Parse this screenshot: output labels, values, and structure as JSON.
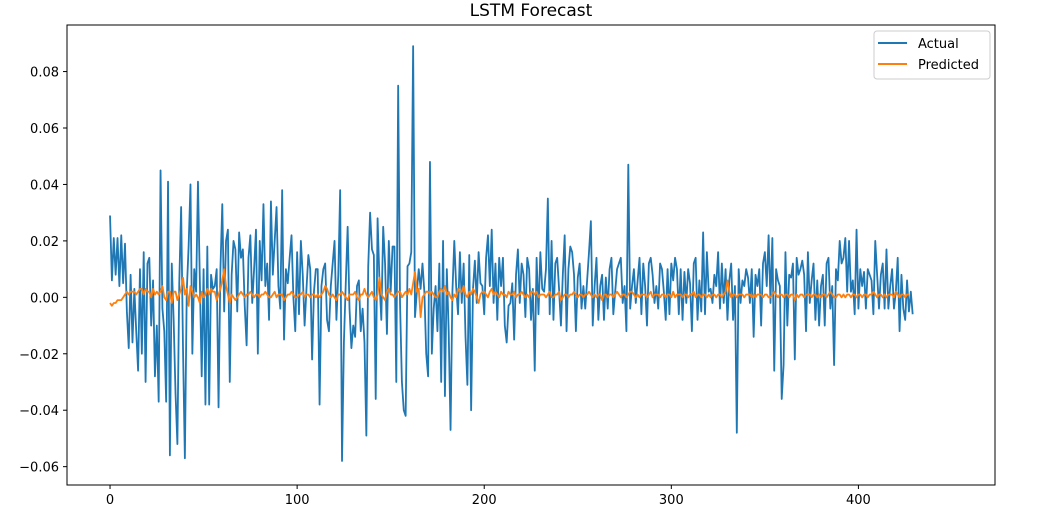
{
  "chart_data": {
    "type": "line",
    "title": "LSTM Forecast",
    "xlabel": "",
    "ylabel": "",
    "xlim": [
      -23,
      473
    ],
    "ylim": [
      -0.0665,
      0.0965
    ],
    "x_ticks": [
      0,
      100,
      200,
      300,
      400
    ],
    "y_ticks": [
      -0.06,
      -0.04,
      -0.02,
      0.0,
      0.02,
      0.04,
      0.06,
      0.08
    ],
    "y_tick_labels": [
      "−0.06",
      "−0.04",
      "−0.02",
      "0.00",
      "0.02",
      "0.04",
      "0.06",
      "0.08"
    ],
    "grid": false,
    "legend_position": "top-right",
    "series": [
      {
        "name": "Actual",
        "color": "#1f77b4",
        "values": [
          0.029,
          0.006,
          0.021,
          0.008,
          0.021,
          0.004,
          0.022,
          0.005,
          0.019,
          -0.005,
          -0.018,
          0.008,
          -0.016,
          0.003,
          -0.012,
          -0.026,
          0.01,
          -0.02,
          0.016,
          -0.03,
          0.012,
          0.014,
          -0.01,
          0.006,
          -0.028,
          -0.01,
          -0.037,
          0.045,
          -0.004,
          -0.012,
          -0.037,
          0.041,
          -0.056,
          0.012,
          -0.008,
          -0.034,
          -0.052,
          0.005,
          0.032,
          -0.018,
          -0.057,
          0.002,
          0.018,
          0.04,
          -0.02,
          0.01,
          0.002,
          0.041,
          0.006,
          -0.028,
          0.01,
          -0.038,
          0.018,
          -0.038,
          0.008,
          0.003,
          0.004,
          0.01,
          -0.039,
          0.01,
          0.033,
          -0.005,
          0.02,
          0.024,
          -0.03,
          0.008,
          0.02,
          0.017,
          -0.005,
          0.023,
          0.014,
          0.017,
          -0.003,
          -0.017,
          0.014,
          0.022,
          -0.002,
          0.01,
          0.024,
          -0.02,
          0.02,
          0.006,
          0.033,
          0.004,
          0.012,
          -0.008,
          0.034,
          0.008,
          0.02,
          0.032,
          0.004,
          -0.004,
          0.038,
          -0.015,
          0.01,
          0.005,
          0.014,
          0.022,
          0.0,
          -0.012,
          0.016,
          -0.006,
          0.02,
          0.008,
          -0.01,
          0.003,
          0.015,
          0.01,
          -0.022,
          0.002,
          0.01,
          0.01,
          -0.038,
          0.004,
          0.01,
          0.012,
          -0.008,
          -0.012,
          0.004,
          0.012,
          0.02,
          -0.008,
          0.008,
          0.038,
          -0.058,
          -0.016,
          0.005,
          0.025,
          -0.004,
          -0.018,
          -0.01,
          -0.014,
          0.004,
          0.006,
          -0.012,
          -0.004,
          -0.016,
          -0.049,
          0.011,
          0.03,
          0.017,
          0.015,
          -0.036,
          0.028,
          0.006,
          -0.008,
          0.025,
          0.012,
          -0.013,
          0.02,
          0.002,
          0.018,
          0.018,
          -0.03,
          0.075,
          -0.002,
          -0.03,
          -0.04,
          -0.042,
          0.011,
          0.012,
          0.016,
          0.089,
          -0.007,
          0.002,
          0.01,
          0.003,
          0.012,
          0.002,
          -0.02,
          -0.028,
          0.048,
          -0.02,
          -0.004,
          0.004,
          -0.012,
          0.012,
          -0.03,
          0.02,
          -0.035,
          0.01,
          -0.012,
          -0.047,
          0.002,
          0.02,
          0.004,
          -0.006,
          0.016,
          -0.002,
          0.012,
          -0.014,
          -0.031,
          0.015,
          -0.04,
          0.003,
          0.013,
          -0.002,
          0.016,
          0.005,
          0.004,
          -0.006,
          0.014,
          0.022,
          0.004,
          0.024,
          -0.002,
          0.012,
          -0.008,
          0.014,
          0.004,
          0.014,
          -0.01,
          -0.016,
          -0.003,
          -0.002,
          0.005,
          -0.015,
          0.008,
          0.017,
          -0.002,
          0.012,
          0.008,
          -0.007,
          0.014,
          0.01,
          -0.008,
          0.003,
          -0.026,
          0.014,
          -0.006,
          0.016,
          0.003,
          0.002,
          0.01,
          0.035,
          -0.006,
          0.02,
          -0.008,
          0.012,
          0.014,
          0.003,
          -0.01,
          0.008,
          0.022,
          -0.012,
          0.01,
          0.018,
          0.016,
          0.008,
          -0.012,
          0.007,
          0.012,
          -0.004,
          0.004,
          -0.004,
          0.006,
          0.016,
          0.027,
          -0.01,
          0.004,
          0.014,
          -0.008,
          0.004,
          0.008,
          -0.008,
          0.007,
          -0.004,
          0.01,
          0.014,
          -0.006,
          0.002,
          0.01,
          0.012,
          0.014,
          -0.002,
          0.004,
          -0.012,
          0.047,
          -0.004,
          0.004,
          0.01,
          -0.002,
          0.006,
          0.014,
          -0.006,
          0.012,
          0.004,
          -0.01,
          0.012,
          0.014,
          0.008,
          -0.002,
          0.004,
          -0.004,
          0.012,
          0.01,
          0.002,
          -0.008,
          0.01,
          -0.006,
          0.012,
          0.006,
          0.014,
          0.01,
          -0.006,
          0.01,
          -0.008,
          0.009,
          -0.002,
          0.01,
          0.005,
          -0.012,
          0.012,
          0.014,
          -0.008,
          0.006,
          -0.005,
          0.023,
          -0.006,
          0.016,
          0.002,
          0.003,
          -0.002,
          0.008,
          0.004,
          0.016,
          -0.004,
          0.012,
          -0.002,
          0.01,
          -0.008,
          0.006,
          0.012,
          -0.008,
          0.004,
          -0.048,
          0.01,
          -0.002,
          0.006,
          0.004,
          0.01,
          0.007,
          -0.002,
          0.01,
          -0.014,
          0.008,
          0.004,
          0.01,
          -0.01,
          0.012,
          0.016,
          0.004,
          0.022,
          -0.002,
          0.021,
          -0.026,
          0.01,
          0.006,
          0.004,
          -0.036,
          -0.024,
          0.016,
          -0.01,
          0.008,
          0.007,
          0.012,
          -0.022,
          0.014,
          0.008,
          0.01,
          0.013,
          0.008,
          -0.012,
          0.016,
          -0.002,
          0.006,
          0.012,
          -0.008,
          0.006,
          -0.01,
          0.004,
          0.008,
          -0.01,
          0.012,
          0.014,
          -0.004,
          0.004,
          -0.024,
          0.01,
          0.006,
          0.02,
          0.012,
          0.014,
          0.021,
          0.002,
          0.02,
          0.002,
          0.006,
          -0.006,
          0.024,
          -0.004,
          0.01,
          0.004,
          0.009,
          -0.004,
          0.01,
          0.008,
          0.006,
          -0.006,
          0.02,
          0.008,
          -0.004,
          0.008,
          0.012,
          -0.004,
          0.017,
          -0.004,
          0.004,
          0.01,
          -0.004,
          0.002,
          0.014,
          -0.012,
          0.008,
          -0.004,
          -0.008,
          0.006,
          -0.005,
          0.002,
          -0.006
        ]
      },
      {
        "name": "Predicted",
        "color": "#ff7f0e",
        "values": [
          -0.002,
          -0.003,
          -0.002,
          -0.002,
          -0.001,
          -0.001,
          -0.001,
          0.0,
          0.001,
          0.002,
          0.001,
          0.002,
          0.002,
          0.002,
          0.001,
          0.002,
          0.003,
          0.003,
          0.001,
          0.003,
          0.002,
          0.002,
          0.0,
          0.003,
          0.001,
          0.002,
          0.001,
          0.002,
          0.004,
          0.0,
          -0.001,
          0.002,
          0.002,
          -0.002,
          0.002,
          0.002,
          -0.001,
          0.001,
          0.003,
          0.007,
          0.001,
          0.003,
          -0.003,
          0.004,
          0.002,
          0.0,
          0.001,
          0.0,
          -0.002,
          0.002,
          0.0,
          0.001,
          0.003,
          0.001,
          0.003,
          0.002,
          0.002,
          -0.001,
          0.001,
          0.003,
          0.006,
          0.01,
          0.004,
          0.001,
          -0.002,
          0.001,
          0.0,
          -0.001,
          0.0,
          0.001,
          0.002,
          0.001,
          0.0,
          0.001,
          0.001,
          0.002,
          0.001,
          0.0,
          0.001,
          0.001,
          0.0,
          0.001,
          0.001,
          0.002,
          0.001,
          0.0,
          0.0,
          0.001,
          0.002,
          0.0,
          0.001,
          0.001,
          0.001,
          -0.001,
          0.0,
          0.001,
          0.001,
          0.002,
          0.001,
          0.0,
          0.0,
          0.001,
          0.001,
          0.002,
          0.0,
          0.001,
          0.001,
          0.0,
          0.001,
          0.001,
          0.0,
          0.001,
          0.0,
          0.001,
          0.002,
          0.004,
          0.003,
          0.001,
          0.0,
          0.001,
          0.0,
          -0.001,
          0.001,
          0.001,
          0.002,
          0.001,
          0.0,
          -0.001,
          0.001,
          0.001,
          0.001,
          0.002,
          0.0,
          -0.001,
          0.001,
          0.001,
          0.003,
          0.001,
          0.0,
          0.001,
          0.002,
          0.0,
          -0.001,
          0.001,
          0.007,
          0.001,
          0.0,
          -0.001,
          0.002,
          0.003,
          0.001,
          0.001,
          0.0,
          0.001,
          0.002,
          0.002,
          0.0,
          0.001,
          0.002,
          0.001,
          0.003,
          0.001,
          0.005,
          0.009,
          0.002,
          0.003,
          -0.007,
          0.0,
          0.001,
          0.002,
          0.002,
          0.001,
          0.002,
          0.001,
          0.0,
          0.0,
          0.002,
          0.003,
          0.002,
          0.004,
          0.001,
          0.002,
          0.0,
          -0.001,
          0.001,
          0.0,
          0.003,
          0.002,
          0.002,
          0.004,
          0.001,
          0.0,
          0.002,
          0.001,
          0.003,
          0.002,
          0.0,
          -0.002,
          0.001,
          0.002,
          0.002,
          0.001,
          0.0,
          0.002,
          0.003,
          0.001,
          0.002,
          0.001,
          0.0,
          0.002,
          0.001,
          0.001,
          0.0,
          0.002,
          0.001,
          0.001,
          0.002,
          0.0,
          0.001,
          0.001,
          0.002,
          0.001,
          0.0,
          0.001,
          0.0,
          0.002,
          0.002,
          0.001,
          0.002,
          0.0,
          0.001,
          0.001,
          0.001,
          0.0,
          0.001,
          0.002,
          0.0,
          0.0,
          0.001,
          0.001,
          0.002,
          -0.001,
          0.0,
          0.001,
          0.001,
          0.0,
          0.001,
          0.001,
          0.002,
          0.001,
          0.0,
          0.001,
          0.001,
          0.0,
          0.001,
          0.001,
          0.002,
          0.001,
          0.0,
          0.001,
          0.0,
          0.001,
          0.001,
          -0.001,
          0.001,
          0.001,
          0.0,
          0.001,
          0.001,
          0.0,
          0.001,
          0.002,
          0.001,
          0.0,
          0.001,
          0.001,
          0.0,
          0.001,
          0.002,
          0.002,
          0.001,
          0.0,
          0.001,
          0.0,
          0.001,
          0.001,
          0.001,
          0.0,
          0.001,
          0.002,
          0.0,
          0.001,
          0.001,
          0.001,
          0.0,
          0.001,
          0.001,
          0.0,
          0.001,
          0.001,
          0.0,
          0.002,
          0.0,
          0.001,
          0.001,
          0.001,
          0.0,
          0.001,
          0.001,
          0.0,
          0.001,
          0.001,
          0.002,
          0.0,
          0.001,
          0.001,
          0.0,
          0.001,
          0.001,
          0.0,
          0.001,
          0.0,
          0.001,
          0.001,
          0.0,
          0.001,
          0.001,
          0.0,
          0.001,
          0.002,
          0.006,
          0.002,
          0.0,
          0.001,
          0.001,
          0.0,
          0.001,
          0.001,
          0.001,
          0.0,
          0.001,
          0.001,
          0.001,
          0.0,
          0.001,
          0.0,
          0.001,
          0.001,
          0.001,
          0.0,
          0.001,
          0.001,
          0.0,
          0.0,
          0.001,
          0.002,
          0.001,
          0.0,
          0.001,
          0.001,
          0.0,
          0.001,
          0.001,
          0.0,
          0.001,
          0.001,
          -0.001,
          0.001,
          0.0,
          0.001,
          0.001,
          0.0,
          0.001,
          0.001,
          0.001,
          0.0,
          0.001,
          0.001,
          0.0,
          0.001,
          0.0,
          0.001,
          0.001,
          0.0,
          0.001,
          0.002,
          0.001,
          0.0,
          0.0,
          0.001,
          0.001,
          0.0,
          0.001,
          0.0,
          0.001,
          0.001,
          0.0,
          0.001,
          0.001,
          0.0,
          0.001,
          0.001,
          0.0,
          0.001,
          0.001,
          0.0,
          0.001,
          0.001,
          0.002,
          0.001,
          0.0,
          0.001,
          0.001,
          0.0,
          0.001,
          0.0,
          0.001,
          0.001,
          0.001,
          0.0,
          0.002,
          0.001,
          0.0,
          0.001,
          0.001,
          0.0,
          0.001,
          0.001
        ]
      }
    ]
  }
}
